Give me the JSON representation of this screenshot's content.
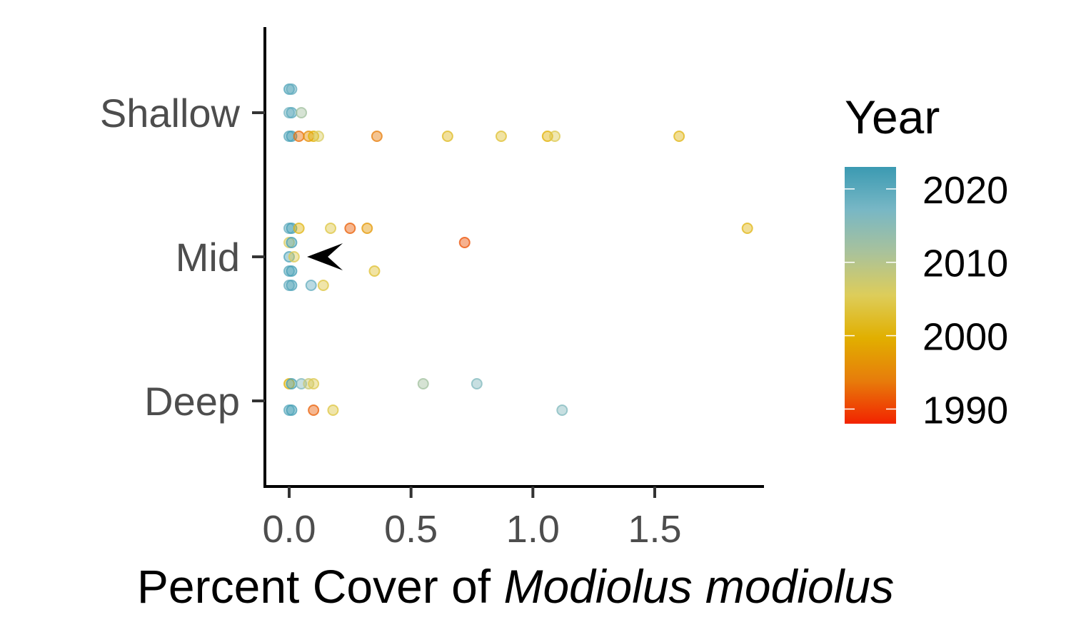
{
  "chart_data": {
    "type": "scatter",
    "title": "",
    "xlabel_plain": "Percent Cover of ",
    "xlabel_italic": "Modiolus modiolus",
    "ylabel": "",
    "xlim": [
      -0.1,
      1.95
    ],
    "x_ticks": [
      0.0,
      0.5,
      1.0,
      1.5
    ],
    "x_tick_labels": [
      "0.0",
      "0.5",
      "1.0",
      "1.5"
    ],
    "y_categories": [
      "Deep",
      "Mid",
      "Shallow"
    ],
    "grid": false,
    "legend": {
      "title": "Year",
      "position": "right",
      "type": "colorbar",
      "range": [
        1988,
        2023
      ],
      "ticks": [
        1990,
        2000,
        2010,
        2020
      ],
      "tick_labels": [
        "1990",
        "2000",
        "2010",
        "2020"
      ],
      "colors": [
        "#f22300",
        "#e77c0b",
        "#e1af00",
        "#ddcd5a",
        "#a9c29b",
        "#78b7c5",
        "#3b9ab2"
      ]
    },
    "annotation": {
      "type": "arrow",
      "depth": "Mid",
      "x": 0.05,
      "jitter": 0.0
    },
    "points": [
      {
        "depth": "Shallow",
        "jitter": 0.33,
        "x": 0.0,
        "year": 2021
      },
      {
        "depth": "Shallow",
        "jitter": 0.33,
        "x": 0.01,
        "year": 2019
      },
      {
        "depth": "Shallow",
        "jitter": 0.0,
        "x": 0.0,
        "year": 2017
      },
      {
        "depth": "Shallow",
        "jitter": 0.0,
        "x": 0.01,
        "year": 2020
      },
      {
        "depth": "Shallow",
        "jitter": 0.0,
        "x": 0.05,
        "year": 2012
      },
      {
        "depth": "Shallow",
        "jitter": -0.33,
        "x": 0.0,
        "year": 2020
      },
      {
        "depth": "Shallow",
        "jitter": -0.33,
        "x": 0.01,
        "year": 2022
      },
      {
        "depth": "Shallow",
        "jitter": -0.33,
        "x": 0.04,
        "year": 1993
      },
      {
        "depth": "Shallow",
        "jitter": -0.33,
        "x": 0.08,
        "year": 1996
      },
      {
        "depth": "Shallow",
        "jitter": -0.33,
        "x": 0.1,
        "year": 2000
      },
      {
        "depth": "Shallow",
        "jitter": -0.33,
        "x": 0.12,
        "year": 2006
      },
      {
        "depth": "Shallow",
        "jitter": -0.33,
        "x": 0.36,
        "year": 1994
      },
      {
        "depth": "Shallow",
        "jitter": -0.33,
        "x": 0.65,
        "year": 2002
      },
      {
        "depth": "Shallow",
        "jitter": -0.33,
        "x": 0.87,
        "year": 2003
      },
      {
        "depth": "Shallow",
        "jitter": -0.33,
        "x": 1.06,
        "year": 2000
      },
      {
        "depth": "Shallow",
        "jitter": -0.33,
        "x": 1.09,
        "year": 2005
      },
      {
        "depth": "Shallow",
        "jitter": -0.33,
        "x": 1.6,
        "year": 2001
      },
      {
        "depth": "Mid",
        "jitter": 0.4,
        "x": 0.0,
        "year": 2019
      },
      {
        "depth": "Mid",
        "jitter": 0.4,
        "x": 0.01,
        "year": 2022
      },
      {
        "depth": "Mid",
        "jitter": 0.4,
        "x": 0.04,
        "year": 2001
      },
      {
        "depth": "Mid",
        "jitter": 0.4,
        "x": 0.17,
        "year": 2004
      },
      {
        "depth": "Mid",
        "jitter": 0.4,
        "x": 0.25,
        "year": 1992
      },
      {
        "depth": "Mid",
        "jitter": 0.4,
        "x": 0.32,
        "year": 1997
      },
      {
        "depth": "Mid",
        "jitter": 0.4,
        "x": 1.88,
        "year": 2001
      },
      {
        "depth": "Mid",
        "jitter": 0.2,
        "x": 0.0,
        "year": 2006
      },
      {
        "depth": "Mid",
        "jitter": 0.2,
        "x": 0.01,
        "year": 2022
      },
      {
        "depth": "Mid",
        "jitter": 0.2,
        "x": 0.72,
        "year": 1991
      },
      {
        "depth": "Mid",
        "jitter": 0.0,
        "x": 0.0,
        "year": 2021
      },
      {
        "depth": "Mid",
        "jitter": 0.0,
        "x": 0.02,
        "year": 2005
      },
      {
        "depth": "Mid",
        "jitter": -0.2,
        "x": 0.0,
        "year": 2020
      },
      {
        "depth": "Mid",
        "jitter": -0.2,
        "x": 0.01,
        "year": 2022
      },
      {
        "depth": "Mid",
        "jitter": -0.2,
        "x": 0.35,
        "year": 2003
      },
      {
        "depth": "Mid",
        "jitter": -0.4,
        "x": 0.0,
        "year": 2019
      },
      {
        "depth": "Mid",
        "jitter": -0.4,
        "x": 0.01,
        "year": 2021
      },
      {
        "depth": "Mid",
        "jitter": -0.4,
        "x": 0.09,
        "year": 2019
      },
      {
        "depth": "Mid",
        "jitter": -0.4,
        "x": 0.14,
        "year": 2004
      },
      {
        "depth": "Deep",
        "jitter": 0.24,
        "x": 0.0,
        "year": 2000
      },
      {
        "depth": "Deep",
        "jitter": 0.24,
        "x": 0.01,
        "year": 2022
      },
      {
        "depth": "Deep",
        "jitter": 0.24,
        "x": 0.05,
        "year": 2016
      },
      {
        "depth": "Deep",
        "jitter": 0.24,
        "x": 0.08,
        "year": 2008
      },
      {
        "depth": "Deep",
        "jitter": 0.24,
        "x": 0.1,
        "year": 2005
      },
      {
        "depth": "Deep",
        "jitter": 0.24,
        "x": 0.55,
        "year": 2012
      },
      {
        "depth": "Deep",
        "jitter": 0.24,
        "x": 0.77,
        "year": 2016
      },
      {
        "depth": "Deep",
        "jitter": -0.13,
        "x": 0.0,
        "year": 2020
      },
      {
        "depth": "Deep",
        "jitter": -0.13,
        "x": 0.01,
        "year": 2022
      },
      {
        "depth": "Deep",
        "jitter": -0.13,
        "x": 0.1,
        "year": 1992
      },
      {
        "depth": "Deep",
        "jitter": -0.13,
        "x": 0.18,
        "year": 2004
      },
      {
        "depth": "Deep",
        "jitter": -0.13,
        "x": 1.12,
        "year": 2016
      }
    ]
  }
}
